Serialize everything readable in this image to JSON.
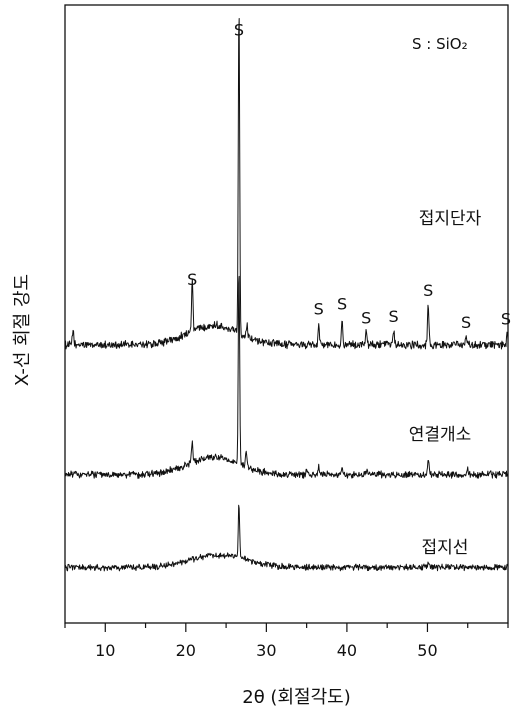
{
  "chart_data": {
    "type": "line",
    "title": "",
    "xlabel": "2θ (회절각도)",
    "ylabel": "X-선 회절 강도",
    "xlim": [
      5,
      60
    ],
    "x_ticks": [
      10,
      20,
      30,
      40,
      50
    ],
    "y_ticks": [],
    "grid": false,
    "annotation": "S : SiO₂",
    "series": [
      {
        "name": "접지단자",
        "baseline_level": 2.25,
        "noise": 0.025,
        "hump": {
          "center": 23.5,
          "height": 0.16,
          "width": 4.5
        },
        "peaks": [
          {
            "x": 6.0,
            "height": 0.12,
            "label": ""
          },
          {
            "x": 20.8,
            "height": 0.42,
            "label": "S"
          },
          {
            "x": 26.6,
            "height": 2.65,
            "label": "S"
          },
          {
            "x": 27.6,
            "height": 0.1,
            "label": ""
          },
          {
            "x": 36.5,
            "height": 0.18,
            "label": "S"
          },
          {
            "x": 39.4,
            "height": 0.22,
            "label": "S"
          },
          {
            "x": 42.4,
            "height": 0.11,
            "label": "S"
          },
          {
            "x": 45.8,
            "height": 0.12,
            "label": "S"
          },
          {
            "x": 50.1,
            "height": 0.33,
            "label": "S"
          },
          {
            "x": 54.8,
            "height": 0.07,
            "label": "S"
          },
          {
            "x": 59.9,
            "height": 0.1,
            "label": "S"
          }
        ]
      },
      {
        "name": "연결개소",
        "baseline_level": 1.2,
        "noise": 0.022,
        "hump": {
          "center": 23.5,
          "height": 0.14,
          "width": 4.5
        },
        "peaks": [
          {
            "x": 20.8,
            "height": 0.18,
            "label": ""
          },
          {
            "x": 26.6,
            "height": 1.6,
            "label": ""
          },
          {
            "x": 27.5,
            "height": 0.12,
            "label": ""
          },
          {
            "x": 35.0,
            "height": 0.05,
            "label": ""
          },
          {
            "x": 36.5,
            "height": 0.06,
            "label": ""
          },
          {
            "x": 39.4,
            "height": 0.07,
            "label": ""
          },
          {
            "x": 42.5,
            "height": 0.06,
            "label": ""
          },
          {
            "x": 50.1,
            "height": 0.12,
            "label": ""
          },
          {
            "x": 55.0,
            "height": 0.05,
            "label": ""
          }
        ]
      },
      {
        "name": "접지선",
        "baseline_level": 0.45,
        "noise": 0.02,
        "hump": {
          "center": 24.0,
          "height": 0.1,
          "width": 4.8
        },
        "peaks": [
          {
            "x": 26.6,
            "height": 0.45,
            "label": ""
          },
          {
            "x": 50.1,
            "height": 0.05,
            "label": ""
          }
        ]
      }
    ],
    "colors": {
      "line": "#111111",
      "axis": "#111111",
      "background": "#ffffff"
    }
  }
}
